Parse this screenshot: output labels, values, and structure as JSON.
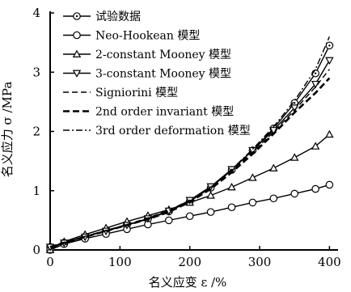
{
  "chart_data": {
    "type": "line",
    "xlabel": "名义应变 ε /%",
    "ylabel": "名义应力 σ /MPa",
    "xlim": [
      0,
      410
    ],
    "ylim": [
      0,
      4
    ],
    "xticks": [
      0,
      100,
      200,
      300,
      400
    ],
    "xtick_labels": [
      "0",
      "100",
      "200",
      "300",
      "400"
    ],
    "yticks": [
      0,
      1,
      2,
      3,
      4
    ],
    "ytick_labels": [
      "0",
      "1",
      "2",
      "3",
      "4"
    ],
    "grid": false,
    "legend_position": "top-left",
    "series": [
      {
        "name": "试验数据",
        "marker": "circle-dot",
        "line": "solid",
        "x": [
          0,
          20,
          50,
          80,
          110,
          140,
          170,
          200,
          230,
          260,
          290,
          320,
          350,
          380,
          400
        ],
        "y": [
          0.05,
          0.12,
          0.22,
          0.32,
          0.42,
          0.52,
          0.65,
          0.82,
          1.05,
          1.35,
          1.68,
          2.05,
          2.48,
          2.98,
          3.45
        ]
      },
      {
        "name": "Neo-Hookean 模型",
        "marker": "circle",
        "line": "solid",
        "x": [
          0,
          20,
          50,
          80,
          110,
          140,
          170,
          200,
          230,
          260,
          290,
          320,
          350,
          380,
          400
        ],
        "y": [
          0.0,
          0.1,
          0.19,
          0.27,
          0.35,
          0.43,
          0.5,
          0.57,
          0.64,
          0.72,
          0.8,
          0.87,
          0.95,
          1.03,
          1.1
        ]
      },
      {
        "name": "2-constant Mooney 模型",
        "marker": "triangle-up",
        "line": "solid",
        "x": [
          0,
          20,
          50,
          80,
          110,
          140,
          170,
          200,
          230,
          260,
          290,
          320,
          350,
          380,
          400
        ],
        "y": [
          0.0,
          0.14,
          0.26,
          0.37,
          0.48,
          0.58,
          0.68,
          0.8,
          0.92,
          1.06,
          1.22,
          1.38,
          1.56,
          1.75,
          1.95
        ]
      },
      {
        "name": "3-constant Mooney 模型",
        "marker": "triangle-down",
        "line": "solid",
        "x": [
          0,
          20,
          50,
          80,
          110,
          140,
          170,
          200,
          230,
          260,
          290,
          320,
          350,
          380,
          400
        ],
        "y": [
          0.05,
          0.12,
          0.22,
          0.32,
          0.42,
          0.53,
          0.66,
          0.84,
          1.07,
          1.36,
          1.68,
          2.02,
          2.4,
          2.8,
          3.2
        ]
      },
      {
        "name": "Signiorini 模型",
        "marker": "none",
        "line": "dashed",
        "x": [
          0,
          20,
          50,
          80,
          110,
          140,
          170,
          200,
          230,
          260,
          290,
          320,
          350,
          380,
          400
        ],
        "y": [
          0.05,
          0.13,
          0.23,
          0.33,
          0.43,
          0.54,
          0.67,
          0.84,
          1.06,
          1.34,
          1.65,
          1.99,
          2.36,
          2.75,
          3.05
        ]
      },
      {
        "name": "2nd order invariant 模型",
        "marker": "none",
        "line": "bold-dashed",
        "x": [
          0,
          20,
          50,
          80,
          110,
          140,
          170,
          200,
          230,
          260,
          290,
          320,
          350,
          380,
          400
        ],
        "y": [
          0.05,
          0.12,
          0.22,
          0.32,
          0.42,
          0.52,
          0.64,
          0.81,
          1.03,
          1.31,
          1.62,
          1.96,
          2.32,
          2.65,
          2.9
        ]
      },
      {
        "name": "3rd order deformation 模型",
        "marker": "none",
        "line": "dash-dot",
        "x": [
          0,
          20,
          50,
          80,
          110,
          140,
          170,
          200,
          230,
          260,
          290,
          320,
          350,
          380,
          400
        ],
        "y": [
          0.05,
          0.12,
          0.22,
          0.32,
          0.42,
          0.53,
          0.66,
          0.83,
          1.06,
          1.36,
          1.7,
          2.08,
          2.52,
          3.05,
          3.6
        ]
      }
    ]
  }
}
